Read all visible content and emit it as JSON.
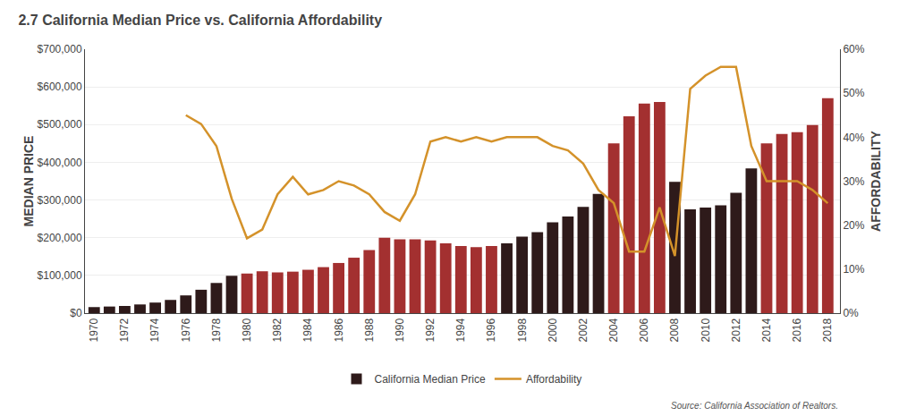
{
  "chart_data": {
    "type": "bar",
    "title": "2.7 California Median Price vs. California Affordability",
    "ylabel": "MEDIAN PRICE",
    "y2label": "AFFORDABILITY",
    "annotations": [
      "Source: California Association of Realtors."
    ],
    "x": [
      1970,
      1971,
      1972,
      1973,
      1974,
      1975,
      1976,
      1977,
      1978,
      1979,
      1980,
      1981,
      1982,
      1983,
      1984,
      1985,
      1986,
      1987,
      1988,
      1989,
      1990,
      1991,
      1992,
      1993,
      1994,
      1995,
      1996,
      1997,
      1998,
      1999,
      2000,
      2001,
      2002,
      2003,
      2004,
      2005,
      2006,
      2007,
      2008,
      2009,
      2010,
      2011,
      2012,
      2013,
      2014,
      2015,
      2016,
      2017,
      2018
    ],
    "series": [
      {
        "name": "California Median Price",
        "type": "bar",
        "colors": [
          "#2E1A1A",
          "#2E1A1A",
          "#2E1A1A",
          "#2E1A1A",
          "#2E1A1A",
          "#2E1A1A",
          "#2E1A1A",
          "#2E1A1A",
          "#2E1A1A",
          "#2E1A1A",
          "#A33030",
          "#A33030",
          "#A33030",
          "#A33030",
          "#A33030",
          "#A33030",
          "#A33030",
          "#A33030",
          "#A33030",
          "#A33030",
          "#A33030",
          "#A33030",
          "#A33030",
          "#A33030",
          "#A33030",
          "#A33030",
          "#A33030",
          "#2E1A1A",
          "#2E1A1A",
          "#2E1A1A",
          "#2E1A1A",
          "#2E1A1A",
          "#2E1A1A",
          "#2E1A1A",
          "#A33030",
          "#A33030",
          "#A33030",
          "#A33030",
          "#2E1A1A",
          "#2E1A1A",
          "#2E1A1A",
          "#2E1A1A",
          "#2E1A1A",
          "#2E1A1A",
          "#A33030",
          "#A33030",
          "#A33030",
          "#A33030",
          "#A33030"
        ],
        "values": [
          16000,
          17500,
          19000,
          23000,
          28000,
          35000,
          47000,
          62000,
          80000,
          99000,
          105000,
          111000,
          108000,
          110000,
          115000,
          122000,
          133000,
          147000,
          167000,
          200000,
          196000,
          196000,
          193000,
          185000,
          178000,
          175000,
          178000,
          185000,
          203000,
          215000,
          241000,
          256000,
          282000,
          316000,
          450000,
          522000,
          556000,
          560000,
          348000,
          275000,
          280000,
          286000,
          319000,
          384000,
          450000,
          475000,
          480000,
          499000,
          570000
        ]
      },
      {
        "name": "Affordability",
        "type": "line",
        "axis": "y2",
        "color": "#D4922A",
        "values": [
          null,
          null,
          null,
          null,
          null,
          null,
          0.45,
          0.43,
          0.38,
          0.26,
          0.17,
          0.19,
          0.27,
          0.31,
          0.27,
          0.28,
          0.3,
          0.29,
          0.27,
          0.23,
          0.21,
          0.27,
          0.39,
          0.4,
          0.39,
          0.4,
          0.39,
          0.4,
          0.4,
          0.4,
          0.38,
          0.37,
          0.34,
          0.28,
          0.25,
          0.14,
          0.14,
          0.24,
          0.13,
          0.51,
          0.54,
          0.56,
          0.56,
          0.38,
          0.3,
          0.3,
          0.3,
          0.28,
          0.25
        ]
      }
    ],
    "xlim": [
      1969.4,
      2018.8
    ],
    "xticks": [
      1970,
      1972,
      1974,
      1976,
      1978,
      1980,
      1982,
      1984,
      1986,
      1988,
      1990,
      1992,
      1994,
      1996,
      1998,
      2000,
      2002,
      2004,
      2006,
      2008,
      2010,
      2012,
      2014,
      2016,
      2018
    ],
    "ylim": [
      0,
      700000
    ],
    "yticks": [
      {
        "value": 0,
        "label": "$0"
      },
      {
        "value": 100000,
        "label": "$100,000"
      },
      {
        "value": 200000,
        "label": "$200,000"
      },
      {
        "value": 300000,
        "label": "$300,000"
      },
      {
        "value": 400000,
        "label": "$400,000"
      },
      {
        "value": 500000,
        "label": "$500,000"
      },
      {
        "value": 600000,
        "label": "$600,000"
      },
      {
        "value": 700000,
        "label": "$700,000"
      }
    ],
    "y2lim": [
      0,
      0.6
    ],
    "y2ticks": [
      {
        "value": 0,
        "label": "0%"
      },
      {
        "value": 0.1,
        "label": "10%"
      },
      {
        "value": 0.2,
        "label": "20%"
      },
      {
        "value": 0.3,
        "label": "30%"
      },
      {
        "value": 0.4,
        "label": "40%"
      },
      {
        "value": 0.5,
        "label": "50%"
      },
      {
        "value": 0.6,
        "label": "60%"
      }
    ],
    "grid": true,
    "legend": "bottom"
  }
}
